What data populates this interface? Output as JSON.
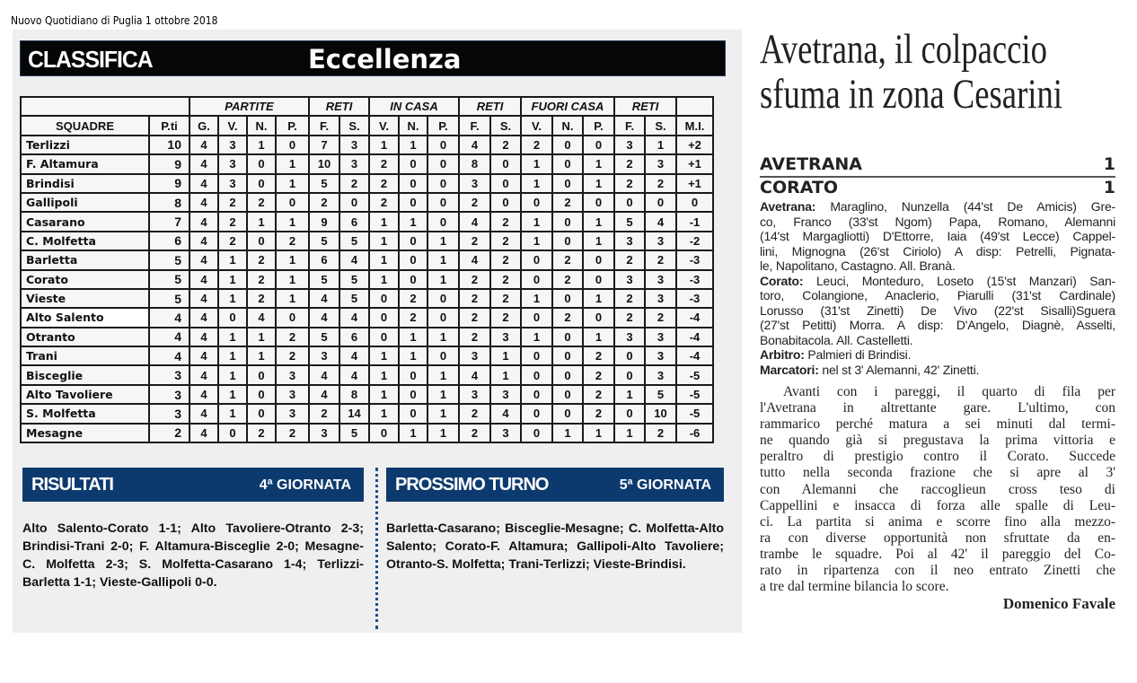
{
  "source": "Nuovo Quotidiano di Puglia   1 ottobre 2018",
  "classifica": {
    "title": "CLASSIFICA",
    "subtitle": "Eccellenza",
    "group_headers": [
      "PARTITE",
      "RETI",
      "IN CASA",
      "RETI",
      "FUORI CASA",
      "RETI"
    ],
    "columns": [
      "SQUADRE",
      "P.ti",
      "G.",
      "V.",
      "N.",
      "P.",
      "F.",
      "S.",
      "V.",
      "N.",
      "P.",
      "F.",
      "S.",
      "V.",
      "N.",
      "P.",
      "F.",
      "S.",
      "M.I."
    ],
    "rows": [
      [
        "Terlizzi",
        "10",
        "4",
        "3",
        "1",
        "0",
        "7",
        "3",
        "1",
        "1",
        "0",
        "4",
        "2",
        "2",
        "0",
        "0",
        "3",
        "1",
        "+2"
      ],
      [
        "F. Altamura",
        "9",
        "4",
        "3",
        "0",
        "1",
        "10",
        "3",
        "2",
        "0",
        "0",
        "8",
        "0",
        "1",
        "0",
        "1",
        "2",
        "3",
        "+1"
      ],
      [
        "Brindisi",
        "9",
        "4",
        "3",
        "0",
        "1",
        "5",
        "2",
        "2",
        "0",
        "0",
        "3",
        "0",
        "1",
        "0",
        "1",
        "2",
        "2",
        "+1"
      ],
      [
        "Gallipoli",
        "8",
        "4",
        "2",
        "2",
        "0",
        "2",
        "0",
        "2",
        "0",
        "0",
        "2",
        "0",
        "0",
        "2",
        "0",
        "0",
        "0",
        "0"
      ],
      [
        "Casarano",
        "7",
        "4",
        "2",
        "1",
        "1",
        "9",
        "6",
        "1",
        "1",
        "0",
        "4",
        "2",
        "1",
        "0",
        "1",
        "5",
        "4",
        "-1"
      ],
      [
        "C. Molfetta",
        "6",
        "4",
        "2",
        "0",
        "2",
        "5",
        "5",
        "1",
        "0",
        "1",
        "2",
        "2",
        "1",
        "0",
        "1",
        "3",
        "3",
        "-2"
      ],
      [
        "Barletta",
        "5",
        "4",
        "1",
        "2",
        "1",
        "6",
        "4",
        "1",
        "0",
        "1",
        "4",
        "2",
        "0",
        "2",
        "0",
        "2",
        "2",
        "-3"
      ],
      [
        "Corato",
        "5",
        "4",
        "1",
        "2",
        "1",
        "5",
        "5",
        "1",
        "0",
        "1",
        "2",
        "2",
        "0",
        "2",
        "0",
        "3",
        "3",
        "-3"
      ],
      [
        "Vieste",
        "5",
        "4",
        "1",
        "2",
        "1",
        "4",
        "5",
        "0",
        "2",
        "0",
        "2",
        "2",
        "1",
        "0",
        "1",
        "2",
        "3",
        "-3"
      ],
      [
        "Alto Salento",
        "4",
        "4",
        "0",
        "4",
        "0",
        "4",
        "4",
        "0",
        "2",
        "0",
        "2",
        "2",
        "0",
        "2",
        "0",
        "2",
        "2",
        "-4"
      ],
      [
        "Otranto",
        "4",
        "4",
        "1",
        "1",
        "2",
        "5",
        "6",
        "0",
        "1",
        "1",
        "2",
        "3",
        "1",
        "0",
        "1",
        "3",
        "3",
        "-4"
      ],
      [
        "Trani",
        "4",
        "4",
        "1",
        "1",
        "2",
        "3",
        "4",
        "1",
        "1",
        "0",
        "3",
        "1",
        "0",
        "0",
        "2",
        "0",
        "3",
        "-4"
      ],
      [
        "Bisceglie",
        "3",
        "4",
        "1",
        "0",
        "3",
        "4",
        "4",
        "1",
        "0",
        "1",
        "4",
        "1",
        "0",
        "0",
        "2",
        "0",
        "3",
        "-5"
      ],
      [
        "Alto Tavoliere",
        "3",
        "4",
        "1",
        "0",
        "3",
        "4",
        "8",
        "1",
        "0",
        "1",
        "3",
        "3",
        "0",
        "0",
        "2",
        "1",
        "5",
        "-5"
      ],
      [
        "S. Molfetta",
        "3",
        "4",
        "1",
        "0",
        "3",
        "2",
        "14",
        "1",
        "0",
        "1",
        "2",
        "4",
        "0",
        "0",
        "2",
        "0",
        "10",
        "-5"
      ],
      [
        "Mesagne",
        "2",
        "4",
        "0",
        "2",
        "2",
        "3",
        "5",
        "0",
        "1",
        "1",
        "2",
        "3",
        "0",
        "1",
        "1",
        "1",
        "2",
        "-6"
      ]
    ]
  },
  "risultati": {
    "title": "RISULTATI",
    "round": "4ª GIORNATA",
    "text": "Alto Salento-Corato 1-1; Alto Tavoliere-Otranto 2-3; Brindisi-Trani 2-0; F. Altamura-Bisceglie 2-0; Mesagne-C. Molfetta 2-3; S. Molfetta-Casarano 1-4; Terlizzi-Barletta 1-1; Vieste-Gallipoli 0-0."
  },
  "prossimo": {
    "title": "PROSSIMO TURNO",
    "round": "5ª GIORNATA",
    "text": "Barletta-Casarano; Bisceglie-Mesagne; C. Molfetta-Alto Salento; Corato-F. Altamura; Gallipoli-Alto Tavoliere; Otranto-S. Molfetta; Trani-Terlizzi; Vieste-Brindisi."
  },
  "article": {
    "headline_1": "Avetrana, il colpaccio",
    "headline_2": "sfuma in zona Cesarini",
    "team1": "AVETRANA",
    "score1": "1",
    "team2": "CORATO",
    "score2": "1",
    "lineup_lines": [
      {
        "label": "Avetrana:",
        "text": " Maraglino, Nunzella (44'st De Amicis) Gre-"
      },
      {
        "label": "",
        "text": "co, Franco (33'st Ngom) Papa, Romano, Alemanni"
      },
      {
        "label": "",
        "text": "(14'st Margagliotti) D'Ettorre, Iaia (49'st Lecce) Cappel-"
      },
      {
        "label": "",
        "text": "lini, Mignogna (26'st Ciriolo) A disp: Petrelli, Pignata-"
      },
      {
        "label": "",
        "text": "le, Napolitano, Castagno. All. Branà.",
        "last": true
      },
      {
        "label": "Corato:",
        "text": " Leuci, Monteduro, Loseto (15'st Manzari) San-"
      },
      {
        "label": "",
        "text": "toro, Colangione, Anaclerio, Piarulli (31'st Cardinale)"
      },
      {
        "label": "",
        "text": "Lorusso (31'st Zinetti) De Vivo (22'st Sisalli)Sguera"
      },
      {
        "label": "",
        "text": "(27'st Petitti) Morra. A disp: D'Angelo, Diagnè, Asselti,"
      },
      {
        "label": "",
        "text": "Bonabitacola. All. Castelletti.",
        "last": true
      },
      {
        "label": "Arbitro:",
        "text": " Palmieri di Brindisi.",
        "last": true
      },
      {
        "label": "Marcatori:",
        "text": " nel st 3' Alemanni, 42' Zinetti.",
        "last": true
      }
    ],
    "body_lines": [
      "Avanti con i pareggi, il quarto di fila per",
      "l'Avetrana in altrettante gare. L'ultimo, con",
      "rammarico perché matura a sei minuti dal termi-",
      "ne quando già si pregustava la prima vittoria e",
      "peraltro di prestigio contro il Corato. Succede",
      "tutto nella seconda frazione che si apre al 3'",
      "con Alemanni che raccoglieun cross teso di",
      "Cappellini e insacca di forza alle spalle di Leu-",
      "ci. La partita si anima e scorre fino alla mezzo-",
      "ra con diverse opportunità non sfruttate da en-",
      "trambe le squadre. Poi al 42' il pareggio del Co-",
      "rato in ripartenza con il neo entrato Zinetti che",
      "a tre dal termine bilancia lo score."
    ],
    "byline": "Domenico Favale"
  }
}
